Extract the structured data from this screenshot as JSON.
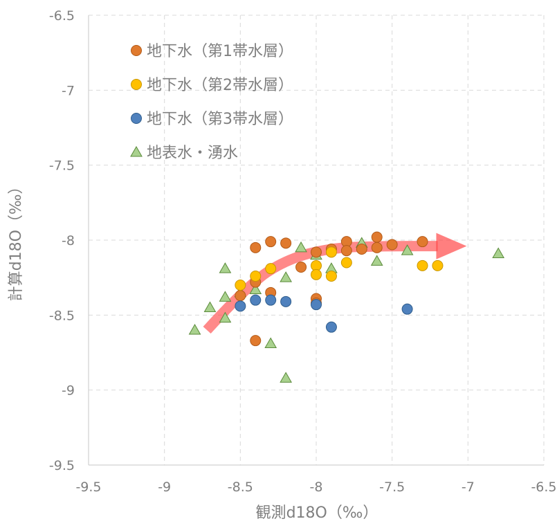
{
  "chart_data": {
    "type": "scatter",
    "xlabel": "観測d18O（‰）",
    "ylabel": "計算d18O（‰）",
    "xlim": [
      -9.5,
      -6.5
    ],
    "ylim": [
      -9.5,
      -6.5
    ],
    "x_ticks": [
      -9.5,
      -9,
      -8.5,
      -8,
      -7.5,
      -7,
      -6.5
    ],
    "y_ticks": [
      -6.5,
      -7,
      -7.5,
      -8,
      -8.5,
      -9,
      -9.5
    ],
    "x_tick_labels": [
      "-9.5",
      "-9",
      "-8.5",
      "-8",
      "-7.5",
      "-7",
      "-6.5"
    ],
    "y_tick_labels": [
      "-6.5",
      "-7",
      "-7.5",
      "-8",
      "-8.5",
      "-9",
      "-9.5"
    ],
    "grid": true,
    "legend_position": "top-left",
    "trend_arrow": {
      "color": "#ff3b3b",
      "points": [
        [
          -8.72,
          -8.6
        ],
        [
          -8.45,
          -8.3
        ],
        [
          -8.2,
          -8.13
        ],
        [
          -7.9,
          -8.05
        ],
        [
          -7.55,
          -8.04
        ],
        [
          -7.2,
          -8.04
        ]
      ]
    },
    "series": [
      {
        "name": "地下水（第1帯水層）",
        "marker": "circle",
        "color": "#e07a2e",
        "stroke": "#b25a18",
        "points": [
          [
            -8.4,
            -8.05
          ],
          [
            -8.3,
            -8.01
          ],
          [
            -8.2,
            -8.02
          ],
          [
            -8.1,
            -8.18
          ],
          [
            -8.0,
            -8.08
          ],
          [
            -7.9,
            -8.06
          ],
          [
            -7.8,
            -8.01
          ],
          [
            -7.8,
            -8.07
          ],
          [
            -7.7,
            -8.06
          ],
          [
            -7.6,
            -7.98
          ],
          [
            -7.6,
            -8.05
          ],
          [
            -7.5,
            -8.03
          ],
          [
            -7.3,
            -8.01
          ],
          [
            -8.3,
            -8.35
          ],
          [
            -8.4,
            -8.28
          ],
          [
            -8.5,
            -8.37
          ],
          [
            -8.0,
            -8.39
          ],
          [
            -8.0,
            -8.42
          ],
          [
            -8.4,
            -8.67
          ]
        ]
      },
      {
        "name": "地下水（第2帯水層）",
        "marker": "circle",
        "color": "#ffc000",
        "stroke": "#c99600",
        "points": [
          [
            -8.5,
            -8.3
          ],
          [
            -8.4,
            -8.24
          ],
          [
            -8.3,
            -8.19
          ],
          [
            -8.0,
            -8.17
          ],
          [
            -8.0,
            -8.23
          ],
          [
            -7.9,
            -8.24
          ],
          [
            -7.8,
            -8.15
          ],
          [
            -7.3,
            -8.17
          ],
          [
            -7.2,
            -8.17
          ],
          [
            -7.9,
            -8.08
          ]
        ]
      },
      {
        "name": "地下水（第3帯水層）",
        "marker": "circle",
        "color": "#4f81bd",
        "stroke": "#2f5d8c",
        "points": [
          [
            -8.5,
            -8.44
          ],
          [
            -8.4,
            -8.4
          ],
          [
            -8.3,
            -8.4
          ],
          [
            -8.2,
            -8.41
          ],
          [
            -8.0,
            -8.43
          ],
          [
            -7.9,
            -8.58
          ],
          [
            -7.4,
            -8.46
          ]
        ]
      },
      {
        "name": "地表水・湧水",
        "marker": "triangle",
        "color": "#a9d18e",
        "stroke": "#5a8a3a",
        "points": [
          [
            -8.8,
            -8.6
          ],
          [
            -8.7,
            -8.45
          ],
          [
            -8.6,
            -8.52
          ],
          [
            -8.6,
            -8.38
          ],
          [
            -8.6,
            -8.19
          ],
          [
            -8.5,
            -8.35
          ],
          [
            -8.4,
            -8.33
          ],
          [
            -8.3,
            -8.69
          ],
          [
            -8.2,
            -8.25
          ],
          [
            -8.2,
            -8.92
          ],
          [
            -8.1,
            -8.05
          ],
          [
            -8.0,
            -8.1
          ],
          [
            -7.9,
            -8.19
          ],
          [
            -7.7,
            -8.02
          ],
          [
            -7.6,
            -8.14
          ],
          [
            -7.4,
            -8.07
          ],
          [
            -6.8,
            -8.09
          ]
        ]
      }
    ]
  }
}
